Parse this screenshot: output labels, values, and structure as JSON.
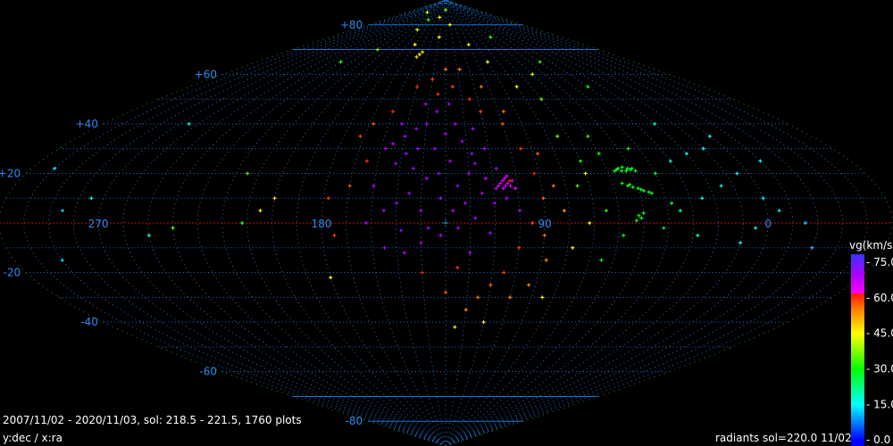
{
  "info": {
    "range_text": "2007/11/02 - 2020/11/03,  sol: 218.5 - 221.5, 1760 plots",
    "axes_text": "y:dec / x:ra",
    "footer_text": "radiants sol=220.0 11/02"
  },
  "chart_data": {
    "type": "scatter",
    "projection": "sinusoidal",
    "center_ra": 130,
    "grid": true,
    "grid_step_deg": 10,
    "xlabel": "ra",
    "ylabel": "dec",
    "dec_ticks": [
      "+80",
      "+60",
      "+40",
      "+20",
      "-20",
      "-40",
      "-60",
      "-80"
    ],
    "dec_tick_values": [
      80,
      60,
      40,
      20,
      -20,
      -40,
      -60,
      -80
    ],
    "ra_ticks": [
      "270",
      "180",
      "90",
      "0"
    ],
    "ra_tick_values": [
      270,
      180,
      90,
      0
    ],
    "colorbar": {
      "title": "vg(km/s)",
      "range": [
        -2.6,
        78.4
      ],
      "ticks": [
        "- 75.0",
        "- 60.0",
        "- 45.0",
        "- 30.0",
        "- 15.0",
        "-  0.0"
      ],
      "tick_values": [
        75,
        60,
        45,
        30,
        15,
        0
      ]
    },
    "colors": {
      "background": "#000000",
      "grid": "#1a6fd0",
      "outline": "#1f8f1f",
      "equator": "#c01010",
      "labels": "#2a8cf0"
    },
    "points_fields": [
      "ra",
      "dec",
      "vg"
    ],
    "points": [
      [
        150,
        35,
        70
      ],
      [
        145,
        38,
        71
      ],
      [
        155,
        32,
        69
      ],
      [
        140,
        40,
        70
      ],
      [
        148,
        28,
        71
      ],
      [
        152,
        24,
        70
      ],
      [
        158,
        30,
        69
      ],
      [
        144,
        22,
        70
      ],
      [
        135,
        30,
        71
      ],
      [
        130,
        36,
        70
      ],
      [
        125,
        40,
        69
      ],
      [
        122,
        33,
        70
      ],
      [
        118,
        28,
        71
      ],
      [
        128,
        25,
        70
      ],
      [
        138,
        18,
        69
      ],
      [
        145,
        12,
        70
      ],
      [
        150,
        8,
        71
      ],
      [
        155,
        5,
        70
      ],
      [
        140,
        5,
        69
      ],
      [
        132,
        10,
        70
      ],
      [
        125,
        15,
        71
      ],
      [
        120,
        20,
        70
      ],
      [
        115,
        12,
        69
      ],
      [
        110,
        8,
        70
      ],
      [
        118,
        2,
        71
      ],
      [
        125,
        -2,
        70
      ],
      [
        132,
        -5,
        69
      ],
      [
        140,
        -8,
        70
      ],
      [
        148,
        -3,
        71
      ],
      [
        155,
        -10,
        70
      ],
      [
        120,
        -12,
        69
      ],
      [
        112,
        -4,
        70
      ],
      [
        108,
        22,
        70
      ],
      [
        112,
        30,
        69
      ],
      [
        116,
        38,
        71
      ],
      [
        105,
        10,
        70
      ],
      [
        100,
        5,
        69
      ],
      [
        135,
        45,
        70
      ],
      [
        142,
        48,
        69
      ],
      [
        128,
        48,
        71
      ],
      [
        160,
        15,
        70
      ],
      [
        162,
        0,
        69
      ],
      [
        137,
        -2,
        70
      ],
      [
        127,
        5,
        68
      ],
      [
        122,
        8,
        69
      ],
      [
        113,
        18,
        67
      ],
      [
        109,
        14,
        68
      ],
      [
        117,
        24,
        70
      ],
      [
        133,
        20,
        71
      ],
      [
        143,
        30,
        70
      ],
      [
        153,
        40,
        71
      ],
      [
        147,
        -12,
        69
      ],
      [
        104,
        16,
        66
      ],
      [
        106,
        17,
        65
      ],
      [
        103,
        15,
        66
      ],
      [
        105,
        18,
        64
      ],
      [
        107,
        16,
        66
      ],
      [
        102,
        17,
        65
      ],
      [
        108,
        15,
        64
      ],
      [
        104,
        19,
        66
      ],
      [
        101,
        14,
        63
      ],
      [
        106,
        14,
        65
      ],
      [
        103,
        17,
        62
      ],
      [
        105,
        15,
        67
      ],
      [
        165,
        25,
        60
      ],
      [
        170,
        15,
        58
      ],
      [
        172,
        35,
        59
      ],
      [
        160,
        45,
        61
      ],
      [
        150,
        55,
        60
      ],
      [
        140,
        58,
        59
      ],
      [
        125,
        55,
        58
      ],
      [
        115,
        50,
        60
      ],
      [
        110,
        45,
        59
      ],
      [
        100,
        40,
        58
      ],
      [
        95,
        30,
        60
      ],
      [
        92,
        20,
        61
      ],
      [
        90,
        10,
        57
      ],
      [
        95,
        0,
        58
      ],
      [
        100,
        -10,
        60
      ],
      [
        105,
        -20,
        59
      ],
      [
        110,
        -25,
        57
      ],
      [
        115,
        -30,
        56
      ],
      [
        120,
        -35,
        55
      ],
      [
        130,
        -28,
        58
      ],
      [
        125,
        -18,
        60
      ],
      [
        140,
        -20,
        61
      ],
      [
        90,
        -5,
        56
      ],
      [
        85,
        15,
        55
      ],
      [
        88,
        28,
        57
      ],
      [
        97,
        45,
        56
      ],
      [
        178,
        10,
        60
      ],
      [
        175,
        -5,
        59
      ],
      [
        168,
        40,
        58
      ],
      [
        135,
        52,
        60
      ],
      [
        118,
        62,
        55
      ],
      [
        130,
        62,
        56
      ],
      [
        105,
        55,
        55
      ],
      [
        88,
        -15,
        54
      ],
      [
        100,
        -30,
        55
      ],
      [
        82,
        5,
        53
      ],
      [
        93,
        -25,
        54
      ],
      [
        158,
        68,
        47
      ],
      [
        160,
        67,
        48
      ],
      [
        156,
        69,
        47
      ],
      [
        140,
        75,
        45
      ],
      [
        120,
        80,
        44
      ],
      [
        100,
        72,
        43
      ],
      [
        90,
        65,
        46
      ],
      [
        170,
        72,
        45
      ],
      [
        185,
        78,
        44
      ],
      [
        80,
        55,
        44
      ],
      [
        78,
        -10,
        46
      ],
      [
        85,
        -30,
        45
      ],
      [
        110,
        -40,
        47
      ],
      [
        125,
        -42,
        44
      ],
      [
        72,
        0,
        45
      ],
      [
        70,
        20,
        43
      ],
      [
        200,
        10,
        48
      ],
      [
        205,
        5,
        46
      ],
      [
        180,
        -22,
        45
      ],
      [
        215,
        85,
        43
      ],
      [
        60,
        60,
        44
      ],
      [
        150,
        83,
        46
      ],
      [
        210,
        70,
        35
      ],
      [
        230,
        65,
        33
      ],
      [
        180,
        82,
        34
      ],
      [
        130,
        86,
        36
      ],
      [
        60,
        75,
        32
      ],
      [
        40,
        65,
        33
      ],
      [
        70,
        50,
        35
      ],
      [
        30,
        55,
        31
      ],
      [
        215,
        20,
        34
      ],
      [
        212,
        0,
        33
      ],
      [
        240,
        -2,
        36
      ],
      [
        60,
        35,
        32
      ],
      [
        49,
        22,
        29
      ],
      [
        50,
        21.5,
        28
      ],
      [
        51,
        22,
        29
      ],
      [
        52,
        21,
        28
      ],
      [
        53,
        22.5,
        29
      ],
      [
        54,
        21,
        29
      ],
      [
        55,
        22,
        28
      ],
      [
        56,
        21.5,
        29
      ],
      [
        48,
        21,
        28
      ],
      [
        57,
        21,
        29
      ],
      [
        56,
        16,
        28
      ],
      [
        54,
        15,
        29
      ],
      [
        52,
        14.5,
        28
      ],
      [
        50,
        14,
        29
      ],
      [
        48,
        13,
        28
      ],
      [
        46,
        12.5,
        29
      ],
      [
        45,
        12,
        28
      ],
      [
        53,
        15.5,
        29
      ],
      [
        49,
        13.5,
        28
      ],
      [
        52,
        3,
        30
      ],
      [
        51,
        2,
        31
      ],
      [
        53,
        1,
        30
      ],
      [
        50,
        4,
        29
      ],
      [
        70,
        25,
        33
      ],
      [
        75,
        15,
        35
      ],
      [
        65,
        5,
        32
      ],
      [
        60,
        28,
        31
      ],
      [
        45,
        30,
        29
      ],
      [
        40,
        20,
        27
      ],
      [
        38,
        8,
        26
      ],
      [
        58,
        -5,
        30
      ],
      [
        65,
        -15,
        32
      ],
      [
        42,
        -2,
        27
      ],
      [
        75,
        35,
        36
      ],
      [
        30,
        25,
        18
      ],
      [
        20,
        28,
        17
      ],
      [
        10,
        30,
        16
      ],
      [
        5,
        20,
        15
      ],
      [
        0,
        10,
        14
      ],
      [
        15,
        15,
        17
      ],
      [
        25,
        10,
        18
      ],
      [
        35,
        5,
        19
      ],
      [
        28,
        -5,
        18
      ],
      [
        10,
        -8,
        15
      ],
      [
        355,
        5,
        14
      ],
      [
        345,
        0,
        13
      ],
      [
        20,
        40,
        19
      ],
      [
        0,
        35,
        16
      ],
      [
        350,
        25,
        15
      ],
      [
        275,
        10,
        16
      ],
      [
        300,
        22,
        14
      ],
      [
        265,
        40,
        18
      ],
      [
        250,
        -5,
        17
      ],
      [
        290,
        -15,
        13
      ],
      [
        340,
        -10,
        12
      ],
      [
        5,
        -2,
        17
      ],
      [
        285,
        5,
        12
      ]
    ]
  }
}
